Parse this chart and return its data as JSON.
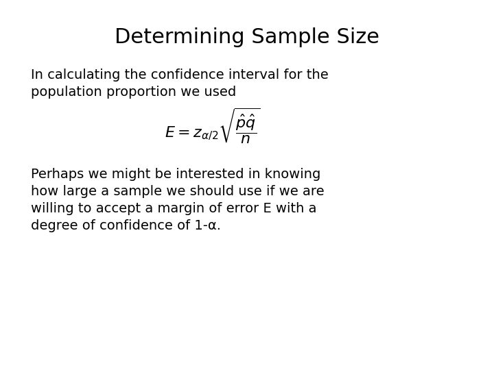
{
  "title": "Determining Sample Size",
  "title_fontsize": 22,
  "bg_color": "#ffffff",
  "text_color": "#000000",
  "body_fontsize": 14,
  "formula_fontsize": 14,
  "line1": "In calculating the confidence interval for the",
  "line2": "population proportion we used",
  "formula": "$E = z_{\\alpha/2}\\sqrt{\\dfrac{\\hat{p}\\hat{q}}{n}}$",
  "para2_line1": "Perhaps we might be interested in knowing",
  "para2_line2": "how large a sample we should use if we are",
  "para2_line3": "willing to accept a margin of error E with a",
  "para2_line4": "degree of confidence of 1-α."
}
